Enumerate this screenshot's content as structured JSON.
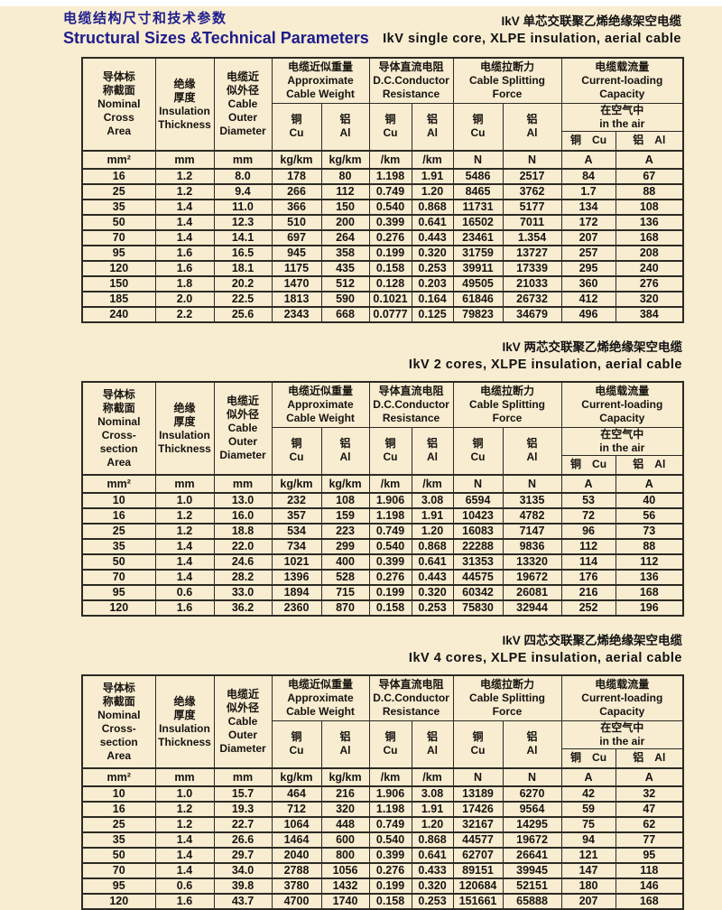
{
  "page": {
    "title_zh": "电缆结构尺寸和技术参数",
    "title_en": "Structural Sizes &Technical Parameters"
  },
  "tables": [
    {
      "caption_zh": "IkV 单芯交联聚乙烯绝缘架空电缆",
      "caption_en": "IkV  single core, XLPE insulation, aerial cable",
      "columns": {
        "area": "导体标\n称截面\nNominal\nCross\nArea",
        "insulation": "绝缘\n厚度\nInsulation\nThickness",
        "diameter": "电缆近\n似外径\nCable\nOuter\nDiameter",
        "weight_group": "电缆近似重量\nApproximate\nCable Weight",
        "resistance_group": "导体直流电阻\nD.C.Conductor\nResistance",
        "force_group": "电缆拉断力\nCable Splitting Force",
        "capacity_group": "电缆载流量\nCurrent-loading Capacity",
        "air": "在空气中\nin the air",
        "cu": "铜\nCu",
        "al": "铝\nAl",
        "cu_inline": "铜　Cu",
        "al_inline": "铝　Al"
      },
      "units": [
        "mm²",
        "mm",
        "mm",
        "kg/km",
        "kg/km",
        "/km",
        "/km",
        "N",
        "N",
        "A",
        "A"
      ],
      "rows": [
        [
          "16",
          "1.2",
          "8.0",
          "178",
          "80",
          "1.198",
          "1.91",
          "5486",
          "2517",
          "84",
          "67"
        ],
        [
          "25",
          "1.2",
          "9.4",
          "266",
          "112",
          "0.749",
          "1.20",
          "8465",
          "3762",
          "1.7",
          "88"
        ],
        [
          "35",
          "1.4",
          "11.0",
          "366",
          "150",
          "0.540",
          "0.868",
          "11731",
          "5177",
          "134",
          "108"
        ],
        [
          "50",
          "1.4",
          "12.3",
          "510",
          "200",
          "0.399",
          "0.641",
          "16502",
          "7011",
          "172",
          "136"
        ],
        [
          "70",
          "1.4",
          "14.1",
          "697",
          "264",
          "0.276",
          "0.443",
          "23461",
          "1.354",
          "207",
          "168"
        ],
        [
          "95",
          "1.6",
          "16.5",
          "945",
          "358",
          "0.199",
          "0.320",
          "31759",
          "13727",
          "257",
          "208"
        ],
        [
          "120",
          "1.6",
          "18.1",
          "1175",
          "435",
          "0.158",
          "0.253",
          "39911",
          "17339",
          "295",
          "240"
        ],
        [
          "150",
          "1.8",
          "20.2",
          "1470",
          "512",
          "0.128",
          "0.203",
          "49505",
          "21033",
          "360",
          "276"
        ],
        [
          "185",
          "2.0",
          "22.5",
          "1813",
          "590",
          "0.1021",
          "0.164",
          "61846",
          "26732",
          "412",
          "320"
        ],
        [
          "240",
          "2.2",
          "25.6",
          "2343",
          "668",
          "0.0777",
          "0.125",
          "79823",
          "34679",
          "496",
          "384"
        ]
      ]
    },
    {
      "caption_zh": "IkV 两芯交联聚乙烯绝缘架空电缆",
      "caption_en": "IkV  2 cores, XLPE insulation, aerial cable",
      "columns": {
        "area": "导体标\n称截面\nNominal\nCross-section\nArea",
        "insulation": "绝缘\n厚度\nInsulation\nThickness",
        "diameter": "电缆近\n似外径\nCable\nOuter\nDiameter",
        "weight_group": "电缆近似重量\nApproximate\nCable Weight",
        "resistance_group": "导体直流电阻\nD.C.Conductor\nResistance",
        "force_group": "电缆拉断力\nCable Splitting Force",
        "capacity_group": "电缆载流量\nCurrent-loading Capacity",
        "air": "在空气中\nin the air",
        "cu": "铜\nCu",
        "al": "铝\nAl",
        "cu_inline": "铜　Cu",
        "al_inline": "铝　Al"
      },
      "units": [
        "mm²",
        "mm",
        "mm",
        "kg/km",
        "kg/km",
        "/km",
        "/km",
        "N",
        "N",
        "A",
        "A"
      ],
      "rows": [
        [
          "10",
          "1.0",
          "13.0",
          "232",
          "108",
          "1.906",
          "3.08",
          "6594",
          "3135",
          "53",
          "40"
        ],
        [
          "16",
          "1.2",
          "16.0",
          "357",
          "159",
          "1.198",
          "1.91",
          "10423",
          "4782",
          "72",
          "56"
        ],
        [
          "25",
          "1.2",
          "18.8",
          "534",
          "223",
          "0.749",
          "1.20",
          "16083",
          "7147",
          "96",
          "73"
        ],
        [
          "35",
          "1.4",
          "22.0",
          "734",
          "299",
          "0.540",
          "0.868",
          "22288",
          "9836",
          "112",
          "88"
        ],
        [
          "50",
          "1.4",
          "24.6",
          "1021",
          "400",
          "0.399",
          "0.641",
          "31353",
          "13320",
          "114",
          "112"
        ],
        [
          "70",
          "1.4",
          "28.2",
          "1396",
          "528",
          "0.276",
          "0.443",
          "44575",
          "19672",
          "176",
          "136"
        ],
        [
          "95",
          "0.6",
          "33.0",
          "1894",
          "715",
          "0.199",
          "0.320",
          "60342",
          "26081",
          "216",
          "168"
        ],
        [
          "120",
          "1.6",
          "36.2",
          "2360",
          "870",
          "0.158",
          "0.253",
          "75830",
          "32944",
          "252",
          "196"
        ]
      ]
    },
    {
      "caption_zh": "IkV 四芯交联聚乙烯绝缘架空电缆",
      "caption_en": "IkV  4 cores, XLPE insulation, aerial cable",
      "columns": {
        "area": "导体标\n称截面\nNominal\nCross-section\nArea",
        "insulation": "绝缘\n厚度\nInsulation\nThickness",
        "diameter": "电缆近\n似外径\nCable\nOuter\nDiameter",
        "weight_group": "电缆近似重量\nApproximate\nCable Weight",
        "resistance_group": "导体直流电阻\nD.C.Conductor\nResistance",
        "force_group": "电缆拉断力\nCable Splitting Force",
        "capacity_group": "电缆载流量\nCurrent-loading Capacity",
        "air": "在空气中\nin the air",
        "cu": "铜\nCu",
        "al": "铝\nAl",
        "cu_inline": "铜　Cu",
        "al_inline": "铝　Al"
      },
      "units": [
        "mm²",
        "mm",
        "mm",
        "kg/km",
        "kg/km",
        "/km",
        "/km",
        "N",
        "N",
        "A",
        "A"
      ],
      "rows": [
        [
          "10",
          "1.0",
          "15.7",
          "464",
          "216",
          "1.906",
          "3.08",
          "13189",
          "6270",
          "42",
          "32"
        ],
        [
          "16",
          "1.2",
          "19.3",
          "712",
          "320",
          "1.198",
          "1.91",
          "17426",
          "9564",
          "59",
          "47"
        ],
        [
          "25",
          "1.2",
          "22.7",
          "1064",
          "448",
          "0.749",
          "1.20",
          "32167",
          "14295",
          "75",
          "62"
        ],
        [
          "35",
          "1.4",
          "26.6",
          "1464",
          "600",
          "0.540",
          "0.868",
          "44577",
          "19672",
          "94",
          "77"
        ],
        [
          "50",
          "1.4",
          "29.7",
          "2040",
          "800",
          "0.399",
          "0.641",
          "62707",
          "26641",
          "121",
          "95"
        ],
        [
          "70",
          "1.4",
          "34.0",
          "2788",
          "1056",
          "0.276",
          "0.433",
          "89151",
          "39945",
          "147",
          "118"
        ],
        [
          "95",
          "0.6",
          "39.8",
          "3780",
          "1432",
          "0.199",
          "0.320",
          "120684",
          "52151",
          "180",
          "146"
        ],
        [
          "120",
          "1.6",
          "43.7",
          "4700",
          "1740",
          "0.158",
          "0.253",
          "151661",
          "65888",
          "207",
          "168"
        ]
      ]
    }
  ],
  "colors": {
    "background": "#f8ecd1",
    "title_blue": "#1d1d8c",
    "border": "#2c2a24",
    "text": "#16140f"
  }
}
